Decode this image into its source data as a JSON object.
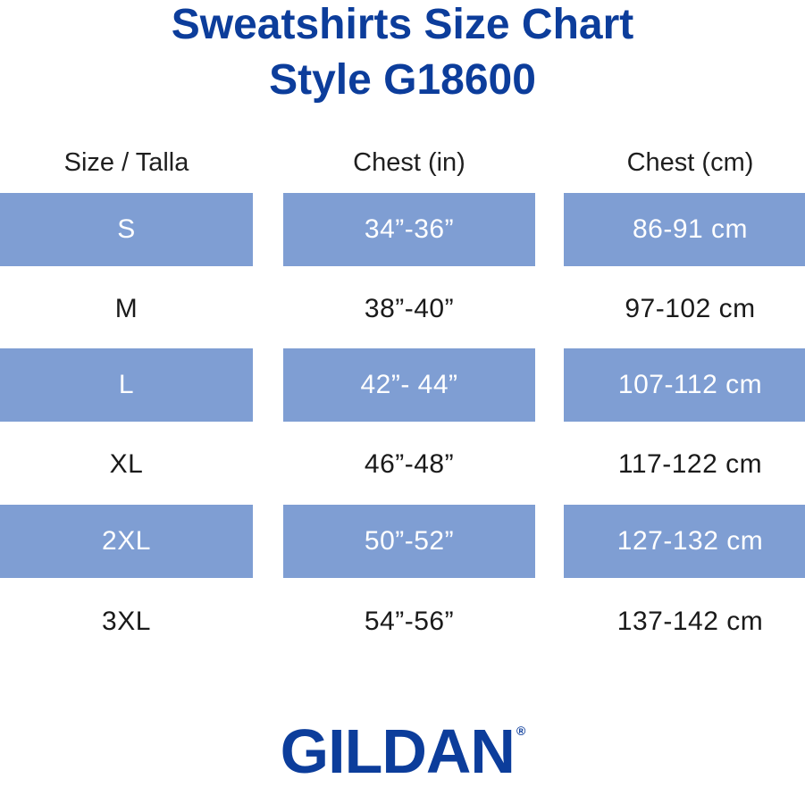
{
  "title": {
    "line1": "Sweatshirts Size Chart",
    "line2": "Style G18600"
  },
  "columns": [
    "Size / Talla",
    "Chest (in)",
    "Chest (cm)"
  ],
  "rows": [
    {
      "size": "S",
      "chest_in": "34”-36”",
      "chest_cm": "86-91 cm"
    },
    {
      "size": "M",
      "chest_in": "38”-40”",
      "chest_cm": "97-102 cm"
    },
    {
      "size": "L",
      "chest_in": "42”- 44”",
      "chest_cm": "107-112 cm"
    },
    {
      "size": "XL",
      "chest_in": "46”-48”",
      "chest_cm": "117-122 cm"
    },
    {
      "size": "2XL",
      "chest_in": "50”-52”",
      "chest_cm": "127-132 cm"
    },
    {
      "size": "3XL",
      "chest_in": "54”-56”",
      "chest_cm": "137-142 cm"
    }
  ],
  "brand": {
    "name": "GILDAN",
    "mark": "®"
  },
  "colors": {
    "title": "#0c3d9b",
    "band": "#7f9ed3",
    "band_text": "#ffffff",
    "plain_text": "#1a1a1a"
  }
}
